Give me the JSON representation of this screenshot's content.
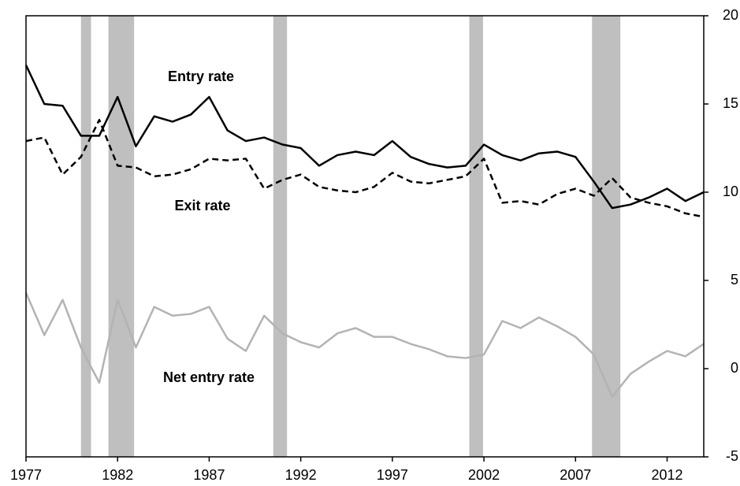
{
  "chart_data": {
    "type": "line",
    "x": [
      1977,
      1978,
      1979,
      1980,
      1981,
      1982,
      1983,
      1984,
      1985,
      1986,
      1987,
      1988,
      1989,
      1990,
      1991,
      1992,
      1993,
      1994,
      1995,
      1996,
      1997,
      1998,
      1999,
      2000,
      2001,
      2002,
      2003,
      2004,
      2005,
      2006,
      2007,
      2008,
      2009,
      2010,
      2011,
      2012,
      2013,
      2014
    ],
    "series": [
      {
        "name": "Entry rate",
        "color": "#000000",
        "dash": "solid",
        "values": [
          17.2,
          15.0,
          14.9,
          13.2,
          13.2,
          15.4,
          12.6,
          14.3,
          14.0,
          14.4,
          15.4,
          13.5,
          12.9,
          13.1,
          12.7,
          12.5,
          11.5,
          12.1,
          12.3,
          12.1,
          12.9,
          12.0,
          11.6,
          11.4,
          11.5,
          12.7,
          12.1,
          11.8,
          12.2,
          12.3,
          12.0,
          10.6,
          9.1,
          9.3,
          9.7,
          10.2,
          9.5,
          10.0
        ]
      },
      {
        "name": "Exit rate",
        "color": "#000000",
        "dash": "dashed",
        "values": [
          12.9,
          13.1,
          11.0,
          12.0,
          14.1,
          11.5,
          11.4,
          10.9,
          11.0,
          11.3,
          11.9,
          11.8,
          11.9,
          10.2,
          10.7,
          11.0,
          10.3,
          10.1,
          10.0,
          10.3,
          11.1,
          10.6,
          10.5,
          10.7,
          10.9,
          11.9,
          9.4,
          9.5,
          9.3,
          9.9,
          10.2,
          9.8,
          10.8,
          9.7,
          9.4,
          9.2,
          8.8,
          8.6
        ]
      },
      {
        "name": "Net entry rate",
        "color": "#b3b3b3",
        "dash": "solid",
        "values": [
          4.3,
          1.9,
          3.9,
          1.2,
          -0.8,
          3.9,
          1.2,
          3.5,
          3.0,
          3.1,
          3.5,
          1.7,
          1.0,
          3.0,
          2.0,
          1.5,
          1.2,
          2.0,
          2.3,
          1.8,
          1.8,
          1.4,
          1.1,
          0.7,
          0.6,
          0.8,
          2.7,
          2.3,
          2.9,
          2.4,
          1.8,
          0.8,
          -1.6,
          -0.3,
          0.4,
          1.0,
          0.7,
          1.4
        ]
      }
    ],
    "shaded_periods": [
      [
        1980.0,
        1980.55
      ],
      [
        1981.5,
        1982.9
      ],
      [
        1990.5,
        1991.25
      ],
      [
        2001.2,
        2001.95
      ],
      [
        2007.9,
        2009.45
      ]
    ],
    "shade_color": "#bfbfbf",
    "xlim": [
      1977,
      2014
    ],
    "xticks": [
      1977,
      1982,
      1987,
      1992,
      1997,
      2002,
      2007,
      2012
    ],
    "ylim": [
      -5,
      20
    ],
    "yticks": [
      -5,
      0,
      5,
      10,
      15,
      20
    ],
    "y_axis_side": "right",
    "grid": false
  }
}
